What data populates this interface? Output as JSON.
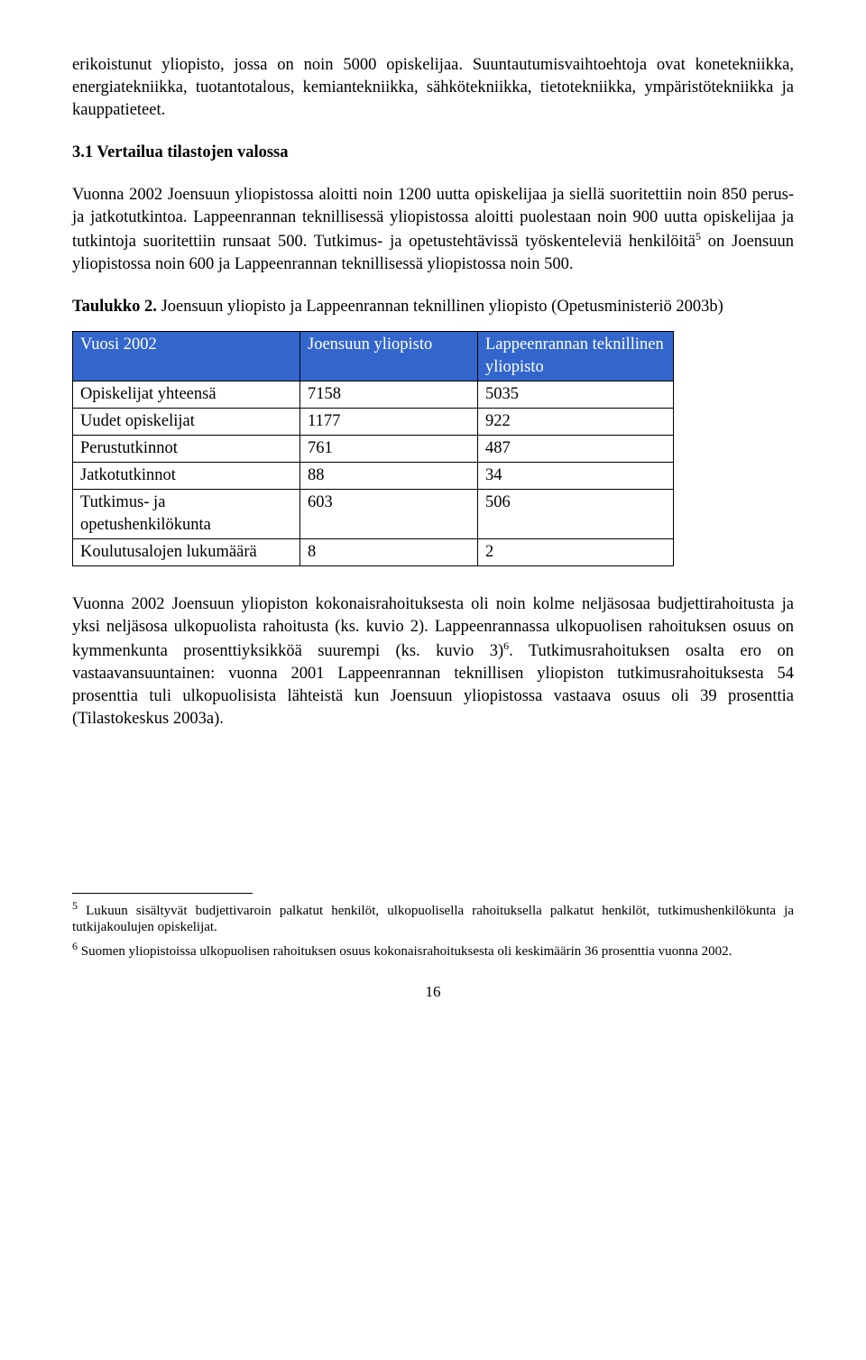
{
  "para1": "erikoistunut yliopisto, jossa on noin 5000 opiskelijaa. Suuntautumisvaihtoehtoja ovat konetekniikka, energiatekniikka, tuotantotalous, kemiantekniikka, sähkötekniikka, tietotekniikka, ympäristötekniikka ja kauppatieteet.",
  "heading": "3.1 Vertailua tilastojen valossa",
  "para2a": "Vuonna 2002 Joensuun yliopistossa aloitti noin 1200 uutta opiskelijaa ja siellä suoritettiin noin 850 perus- ja jatkotutkintoa. Lappeenrannan teknillisessä yliopistossa aloitti puolestaan noin 900 uutta opiskelijaa ja tutkintoja suoritettiin runsaat 500. Tutkimus- ja opetustehtävissä työskenteleviä henkilöitä",
  "para2b": " on Joensuun yliopistossa noin 600 ja Lappeenrannan teknillisessä yliopistossa noin 500.",
  "fn5_marker": "5",
  "table_caption_bold": "Taulukko 2.",
  "table_caption_rest": " Joensuun yliopisto ja Lappeenrannan teknillinen yliopisto (Opetusministeriö 2003b)",
  "table": {
    "header_bg": "#3366cc",
    "header_fg": "#ffffff",
    "headers": [
      "Vuosi 2002",
      "Joensuun yliopisto",
      "Lappeenrannan teknillinen yliopisto"
    ],
    "rows": [
      [
        "Opiskelijat yhteensä",
        "7158",
        "5035"
      ],
      [
        "Uudet opiskelijat",
        "1177",
        "922"
      ],
      [
        "Perustutkinnot",
        "761",
        "487"
      ],
      [
        "Jatkotutkinnot",
        "88",
        "34"
      ],
      [
        "Tutkimus- ja opetushenkilökunta",
        "603",
        "506"
      ],
      [
        "Koulutusalojen lukumäärä",
        "8",
        "2"
      ]
    ]
  },
  "para3a": "Vuonna 2002 Joensuun yliopiston kokonaisrahoituksesta oli noin kolme neljäsosaa budjettirahoitusta ja yksi neljäsosa ulkopuolista rahoitusta (ks. kuvio 2). Lappeenrannassa ulkopuolisen rahoituksen osuus on kymmenkunta prosenttiyksikköä suurempi (ks. kuvio 3)",
  "fn6_marker": "6",
  "para3b": ". Tutkimusrahoituksen osalta ero on vastaavansuuntainen: vuonna 2001 Lappeenrannan teknillisen yliopiston tutkimusrahoituksesta 54 prosenttia tuli ulkopuolisista lähteistä kun Joensuun yliopistossa vastaava osuus oli 39 prosenttia (Tilastokeskus 2003a).",
  "footnote5_marker": "5",
  "footnote5": " Lukuun sisältyvät budjettivaroin palkatut henkilöt, ulkopuolisella rahoituksella palkatut henkilöt, tutkimushenkilökunta ja tutkijakoulujen opiskelijat.",
  "footnote6_marker": "6",
  "footnote6": " Suomen yliopistoissa ulkopuolisen rahoituksen osuus kokonaisrahoituksesta oli keskimäärin 36 prosenttia vuonna 2002.",
  "page_number": "16"
}
